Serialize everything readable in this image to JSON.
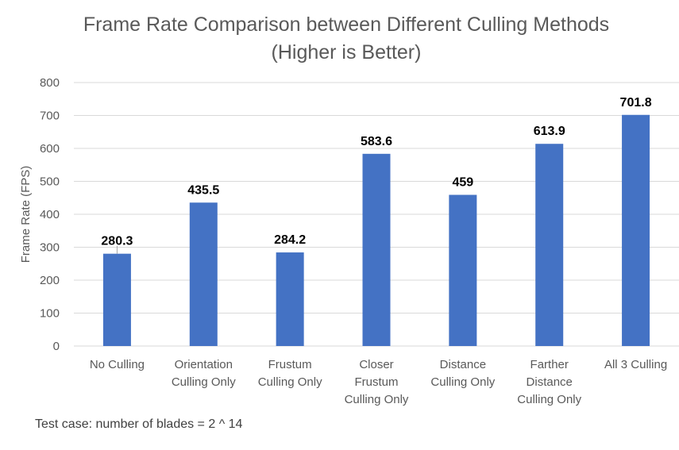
{
  "chart_data": {
    "type": "bar",
    "title": "Frame Rate Comparison between Different Culling Methods",
    "subtitle": "(Higher is Better)",
    "xlabel": "",
    "ylabel": "Frame Rate (FPS)",
    "ylim": [
      0,
      800
    ],
    "yticks": [
      "0",
      "100",
      "200",
      "300",
      "400",
      "500",
      "600",
      "700",
      "800"
    ],
    "grid": true,
    "legend": "none",
    "bar_color": "#4472C4",
    "categories": [
      [
        "No Culling"
      ],
      [
        "Orientation",
        "Culling Only"
      ],
      [
        "Frustum",
        "Culling Only"
      ],
      [
        "Closer",
        "Frustum",
        "Culling Only"
      ],
      [
        "Distance",
        "Culling Only"
      ],
      [
        "Farther",
        "Distance",
        "Culling Only"
      ],
      [
        "All 3 Culling"
      ]
    ],
    "values": [
      280.3,
      435.5,
      284.2,
      583.6,
      459,
      613.9,
      701.8
    ],
    "data_labels": [
      "280.3",
      "435.5",
      "284.2",
      "583.6",
      "459",
      "613.9",
      "701.8"
    ]
  },
  "footnote": "Test case: number of blades = 2 ^ 14"
}
